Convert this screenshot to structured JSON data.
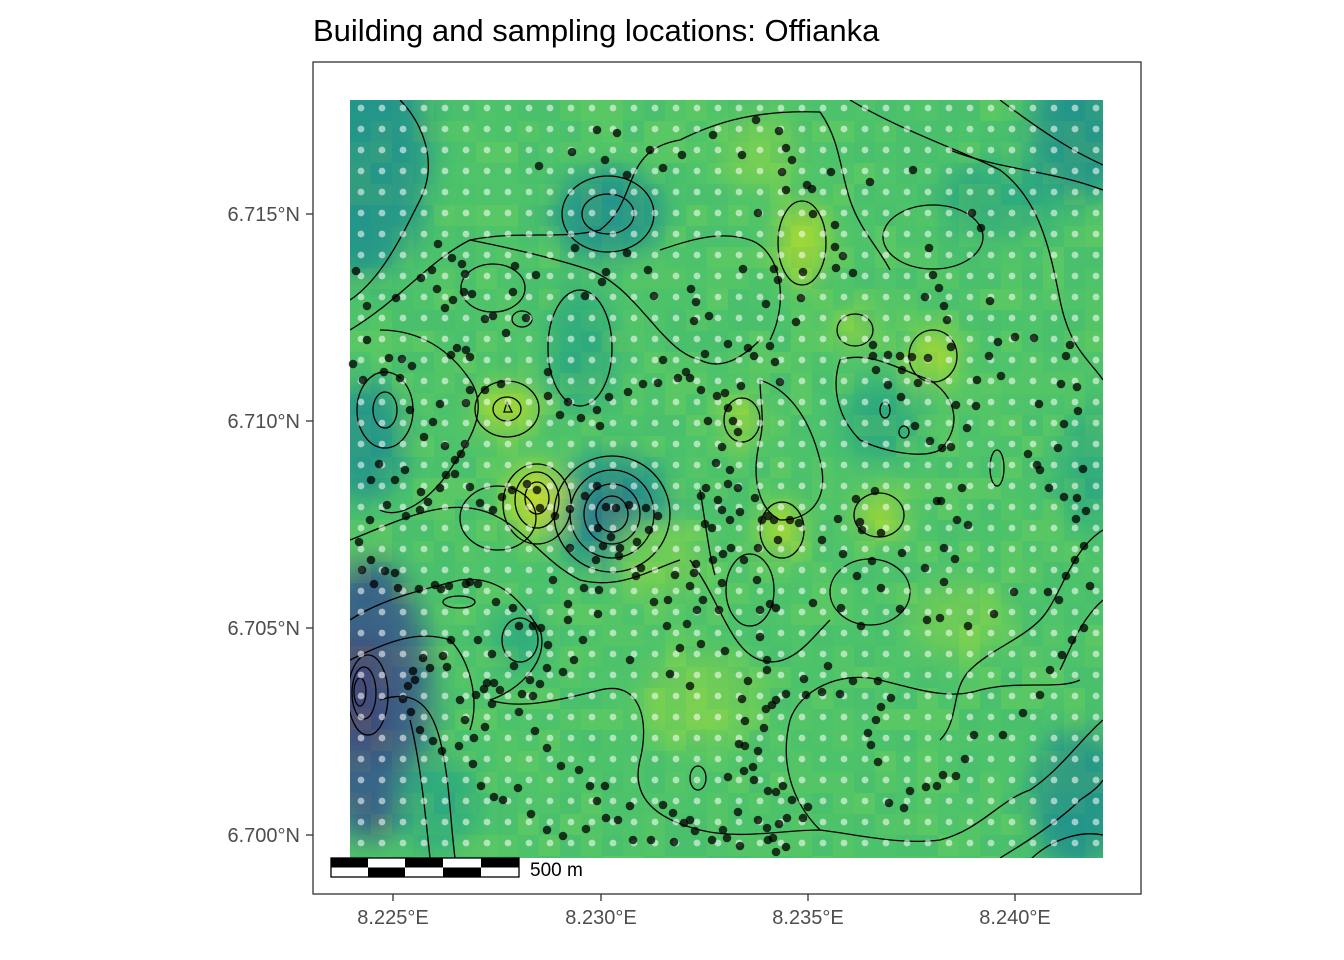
{
  "title": "Building and sampling locations: Offianka",
  "x_ticks": [
    "8.225°E",
    "8.230°E",
    "8.235°E",
    "8.240°E"
  ],
  "y_ticks": [
    "6.715°N",
    "6.710°N",
    "6.705°N",
    "6.700°N"
  ],
  "scale_bar": {
    "label": "500 m"
  },
  "colors": {
    "background": "#ffffff",
    "panel_border": "#333333",
    "surface_low": "#3b528b",
    "surface_mid_low": "#21918c",
    "surface_mid": "#3fbc73",
    "surface_high": "#b5de2b",
    "surface_peak": "#f2e51d",
    "building_point": "#000000",
    "sampling_point": "#ffffff"
  },
  "layers": [
    "raster-surface",
    "contour-lines",
    "sampling-grid-points",
    "building-points",
    "scale-bar"
  ],
  "chart_data": {
    "type": "heatmap",
    "title": "Building and sampling locations: Offianka",
    "xlim": [
      8.2233,
      8.2433
    ],
    "ylim": [
      6.699,
      6.718
    ],
    "x_ticks": [
      8.225,
      8.23,
      8.235,
      8.24
    ],
    "y_ticks": [
      6.715,
      6.71,
      6.705,
      6.7
    ],
    "raster_extent": {
      "x": [
        8.2239,
        8.2421
      ],
      "y": [
        6.6995,
        6.7178
      ]
    },
    "grid_on": false,
    "layers": {
      "surface": "viridis-colored raster of a continuous field with contour lines",
      "sampling_points": "regular white grid of survey points",
      "buildings": "black dots for building locations"
    }
  }
}
